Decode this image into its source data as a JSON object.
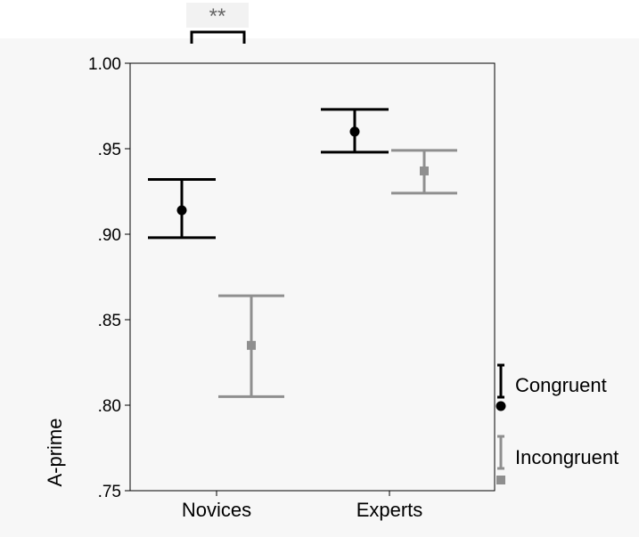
{
  "chart_data": {
    "type": "errorbar",
    "title": "",
    "xlabel": "",
    "ylabel": "A-prime",
    "categories": [
      "Novices",
      "Experts"
    ],
    "ylim": [
      0.75,
      1.0
    ],
    "yticks": [
      0.75,
      0.8,
      0.85,
      0.9,
      0.95,
      1.0
    ],
    "ytick_labels": [
      ".75",
      ".80",
      ".85",
      ".90",
      ".95",
      "1.00"
    ],
    "grid": false,
    "legend_position": "right",
    "series": [
      {
        "name": "Congruent",
        "color": "#000000",
        "marker": "circle",
        "means": [
          0.914,
          0.96
        ],
        "ci_lower": [
          0.898,
          0.948
        ],
        "ci_upper": [
          0.932,
          0.973
        ]
      },
      {
        "name": "Incongruent",
        "color": "#8f8f8f",
        "marker": "square",
        "means": [
          0.835,
          0.937
        ],
        "ci_lower": [
          0.805,
          0.924
        ],
        "ci_upper": [
          0.864,
          0.949
        ]
      }
    ],
    "annotations": [
      {
        "text": "**",
        "category": "Novices",
        "type": "significance-bracket"
      }
    ]
  }
}
